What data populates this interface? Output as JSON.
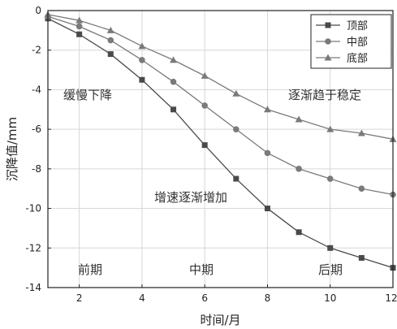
{
  "chart_data": {
    "type": "line",
    "title": "",
    "xlabel": "时间/月",
    "ylabel": "沉降值/mm",
    "xlim": [
      1,
      12
    ],
    "ylim": [
      -14,
      0
    ],
    "x_ticks": [
      2,
      4,
      6,
      8,
      10,
      12
    ],
    "y_ticks": [
      0,
      -2,
      -4,
      -6,
      -8,
      -10,
      -12,
      -14
    ],
    "grid": true,
    "legend_position": "top-right",
    "x": [
      1,
      2,
      3,
      4,
      5,
      6,
      7,
      8,
      9,
      10,
      11,
      12
    ],
    "series": [
      {
        "name": "顶部",
        "marker": "square",
        "color": "#4a4a4a",
        "values": [
          -0.4,
          -1.2,
          -2.2,
          -3.5,
          -5.0,
          -6.8,
          -8.5,
          -10.0,
          -11.2,
          -12.0,
          -12.5,
          -13.0
        ]
      },
      {
        "name": "中部",
        "marker": "circle",
        "color": "#7a7a7a",
        "values": [
          -0.3,
          -0.8,
          -1.5,
          -2.5,
          -3.6,
          -4.8,
          -6.0,
          -7.2,
          -8.0,
          -8.5,
          -9.0,
          -9.3
        ]
      },
      {
        "name": "底部",
        "marker": "triangle",
        "color": "#7a7a7a",
        "values": [
          -0.2,
          -0.5,
          -1.0,
          -1.8,
          -2.5,
          -3.3,
          -4.2,
          -5.0,
          -5.5,
          -6.0,
          -6.2,
          -6.5
        ]
      }
    ],
    "annotations": [
      {
        "text": "缓慢下降"
      },
      {
        "text": "逐渐趋于稳定"
      },
      {
        "text": "增速逐渐增加"
      },
      {
        "text": "前期"
      },
      {
        "text": "中期"
      },
      {
        "text": "后期"
      }
    ]
  }
}
